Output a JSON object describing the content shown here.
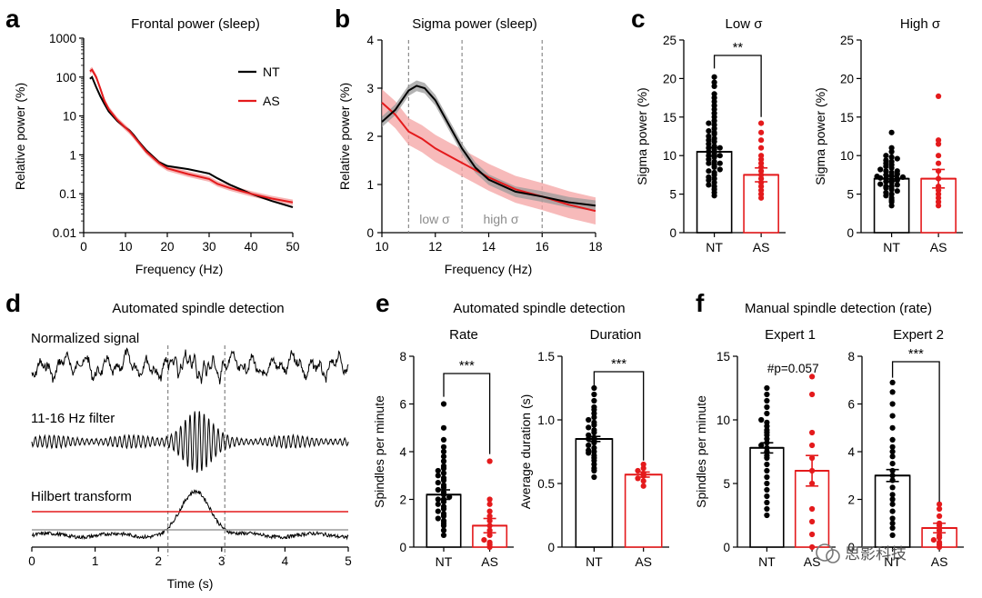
{
  "panel_labels": {
    "a": "a",
    "b": "b",
    "c": "c",
    "d": "d",
    "e": "e",
    "f": "f"
  },
  "watermark": {
    "text": "思影科技"
  },
  "colors": {
    "nt": "#000000",
    "as": "#e41a1c",
    "as_band": "#f4a3a3",
    "nt_band": "#9a9a9a",
    "dash": "#8c8c8c",
    "threshold_red": "#e41a1c",
    "threshold_gray": "#9a9a9a"
  },
  "chart_data": [
    {
      "id": "a",
      "type": "line",
      "title": "Frontal power (sleep)",
      "xlabel": "Frequency (Hz)",
      "ylabel": "Relative power (%)",
      "yscale": "log",
      "xlim": [
        0,
        50
      ],
      "ylim": [
        0.01,
        1000
      ],
      "xticks": [
        "0",
        "10",
        "20",
        "30",
        "40",
        "50"
      ],
      "yticks": [
        "0.01",
        "0.1",
        "1",
        "10",
        "100",
        "1000"
      ],
      "legend": {
        "position": "top-right",
        "entries": [
          "NT",
          "AS"
        ]
      },
      "series": [
        {
          "name": "NT",
          "x": [
            1.5,
            2,
            3,
            4,
            5,
            6,
            8,
            10,
            11,
            12,
            13,
            15,
            18,
            20,
            25,
            30,
            32,
            35,
            40,
            45,
            50
          ],
          "y": [
            90,
            100,
            55,
            32,
            20,
            13,
            7.5,
            5,
            4.2,
            3.2,
            2.3,
            1.3,
            0.65,
            0.52,
            0.43,
            0.33,
            0.25,
            0.17,
            0.1,
            0.065,
            0.045
          ]
        },
        {
          "name": "AS",
          "x": [
            1.5,
            2,
            3,
            4,
            5,
            6,
            8,
            10,
            11,
            12,
            13,
            15,
            18,
            20,
            25,
            30,
            32,
            35,
            40,
            45,
            50
          ],
          "y": [
            140,
            155,
            100,
            50,
            24,
            15,
            8,
            5,
            4,
            3,
            2.2,
            1.2,
            0.62,
            0.45,
            0.32,
            0.24,
            0.18,
            0.14,
            0.1,
            0.075,
            0.06
          ]
        }
      ]
    },
    {
      "id": "b",
      "type": "line",
      "title": "Sigma power (sleep)",
      "xlabel": "Frequency (Hz)",
      "ylabel": "Relative power (%)",
      "xlim": [
        10,
        18
      ],
      "ylim": [
        0,
        4
      ],
      "xticks": [
        "10",
        "12",
        "14",
        "16",
        "18"
      ],
      "yticks": [
        "0",
        "1",
        "2",
        "3",
        "4"
      ],
      "dashed_x": [
        11,
        13,
        16
      ],
      "bands": [
        "low σ",
        "high σ"
      ],
      "series": [
        {
          "name": "NT",
          "x": [
            10,
            10.5,
            11,
            11.3,
            11.6,
            12,
            12.5,
            13,
            13.5,
            14,
            15,
            16,
            17,
            18
          ],
          "y": [
            2.3,
            2.55,
            2.95,
            3.05,
            3.0,
            2.75,
            2.25,
            1.75,
            1.35,
            1.1,
            0.85,
            0.75,
            0.63,
            0.56
          ]
        },
        {
          "name": "AS",
          "x": [
            10,
            10.5,
            11,
            11.5,
            12,
            12.5,
            13,
            13.5,
            14,
            15,
            16,
            17,
            18
          ],
          "y": [
            2.7,
            2.45,
            2.1,
            1.95,
            1.75,
            1.6,
            1.45,
            1.3,
            1.15,
            0.9,
            0.75,
            0.58,
            0.45
          ]
        }
      ]
    },
    {
      "id": "c1",
      "type": "bar",
      "title": "Low σ",
      "ylabel": "Sigma power (%)",
      "categories": [
        "NT",
        "AS"
      ],
      "values": [
        10.5,
        7.5
      ],
      "sem": [
        0.55,
        0.9
      ],
      "ylim": [
        0,
        25
      ],
      "yticks": [
        "0",
        "5",
        "10",
        "15",
        "20",
        "25"
      ],
      "significance": "**",
      "points": [
        [
          4.8,
          5.2,
          5.6,
          6,
          6.2,
          6.5,
          6.8,
          7,
          7.2,
          7.5,
          7.8,
          8,
          8.2,
          8.5,
          8.8,
          9,
          9,
          9.2,
          9.5,
          9.8,
          10,
          10,
          10.2,
          10.5,
          10.8,
          11,
          11,
          11.2,
          11.5,
          11.8,
          12,
          12.2,
          12.5,
          12.8,
          13,
          13.2,
          13.5,
          14,
          14.2,
          14.5,
          15,
          15.5,
          16,
          16.5,
          17,
          17.5,
          18,
          19,
          19.5,
          20.2
        ],
        [
          4.5,
          5,
          5.5,
          6,
          6.5,
          7,
          7.5,
          8,
          8.5,
          9,
          9.5,
          10,
          11,
          12,
          13,
          14.2
        ]
      ]
    },
    {
      "id": "c2",
      "type": "bar",
      "title": "High σ",
      "ylabel": "Sigma power (%)",
      "categories": [
        "NT",
        "AS"
      ],
      "values": [
        7.0,
        7.0
      ],
      "sem": [
        0.3,
        1.2
      ],
      "ylim": [
        0,
        25
      ],
      "yticks": [
        "0",
        "5",
        "10",
        "15",
        "20",
        "25"
      ],
      "points": [
        [
          3.5,
          4,
          4.2,
          4.5,
          4.8,
          5,
          5.2,
          5.4,
          5.6,
          5.8,
          6,
          6,
          6.2,
          6.3,
          6.5,
          6.6,
          6.8,
          6.9,
          7,
          7,
          7.1,
          7.2,
          7.3,
          7.4,
          7.5,
          7.6,
          7.8,
          8,
          8,
          8.2,
          8.4,
          8.6,
          8.8,
          9,
          9.2,
          9.4,
          9.6,
          9.8,
          10,
          10.5,
          11,
          13
        ],
        [
          3.5,
          4,
          4.5,
          5,
          5.5,
          6,
          7,
          8,
          9,
          10,
          11.5,
          12,
          17.7
        ]
      ]
    },
    {
      "id": "d",
      "type": "line",
      "title": "Automated spindle detection",
      "xlabel": "Time (s)",
      "xlim": [
        0,
        5
      ],
      "xticks": [
        "0",
        "1",
        "2",
        "3",
        "4",
        "5"
      ],
      "trace_labels": [
        "Normalized signal",
        "11-16 Hz filter",
        "Hilbert transform"
      ],
      "detection_window_s": [
        2.15,
        3.05
      ]
    },
    {
      "id": "e1",
      "type": "bar",
      "title": "Automated spindle detection",
      "subtitle": "Rate",
      "ylabel": "Spindles per minute",
      "categories": [
        "NT",
        "AS"
      ],
      "values": [
        2.2,
        0.9
      ],
      "sem": [
        0.2,
        0.3
      ],
      "ylim": [
        0,
        8
      ],
      "yticks": [
        "0",
        "2",
        "4",
        "6",
        "8"
      ],
      "significance": "***",
      "points": [
        [
          0.5,
          0.7,
          0.9,
          1.0,
          1.1,
          1.2,
          1.3,
          1.4,
          1.5,
          1.6,
          1.7,
          1.8,
          1.9,
          2.0,
          2.0,
          2.1,
          2.2,
          2.3,
          2.4,
          2.5,
          2.6,
          2.7,
          2.8,
          2.9,
          3.0,
          3.1,
          3.2,
          3.3,
          3.4,
          3.6,
          3.8,
          4.0,
          4.2,
          4.5,
          5.0,
          6.0
        ],
        [
          0,
          0.1,
          0.2,
          0.3,
          0.5,
          0.7,
          0.9,
          1.1,
          1.3,
          1.5,
          1.8,
          2.0,
          3.6
        ]
      ]
    },
    {
      "id": "e2",
      "type": "bar",
      "subtitle": "Duration",
      "ylabel": "Average duration (s)",
      "categories": [
        "NT",
        "AS"
      ],
      "values": [
        0.85,
        0.57
      ],
      "sem": [
        0.02,
        0.02
      ],
      "ylim": [
        0,
        1.5
      ],
      "yticks": [
        "0",
        "0.5",
        "1.0",
        "1.5"
      ],
      "significance": "***",
      "points": [
        [
          0.55,
          0.6,
          0.62,
          0.65,
          0.68,
          0.7,
          0.72,
          0.74,
          0.75,
          0.76,
          0.78,
          0.8,
          0.82,
          0.84,
          0.85,
          0.86,
          0.88,
          0.9,
          0.92,
          0.94,
          0.96,
          0.98,
          1.0,
          1.02,
          1.05,
          1.08,
          1.1,
          1.15,
          1.2,
          1.25
        ],
        [
          0.48,
          0.52,
          0.54,
          0.56,
          0.58,
          0.6,
          0.62,
          0.65
        ]
      ]
    },
    {
      "id": "f1",
      "type": "bar",
      "title": "Manual spindle detection (rate)",
      "subtitle": "Expert 1",
      "ylabel": "Spindles per minute",
      "categories": [
        "NT",
        "AS"
      ],
      "values": [
        7.8,
        6.0
      ],
      "sem": [
        0.4,
        1.2
      ],
      "ylim": [
        0,
        15
      ],
      "yticks": [
        "0",
        "5",
        "10",
        "15"
      ],
      "annotation": "#p=0.057",
      "points": [
        [
          2.5,
          3,
          3.5,
          4,
          4.5,
          5,
          5.5,
          6,
          6.5,
          7,
          7.2,
          7.5,
          7.8,
          8,
          8.2,
          8.5,
          8.8,
          9,
          9.2,
          9.5,
          9.8,
          10,
          10.5,
          11,
          11.5,
          12,
          12.5
        ],
        [
          0,
          1,
          2,
          3,
          5,
          6,
          7,
          8,
          9,
          12,
          13.4
        ]
      ]
    },
    {
      "id": "f2",
      "type": "bar",
      "subtitle": "Expert 2",
      "ylabel": "Spindles per minute",
      "categories": [
        "NT",
        "AS"
      ],
      "values": [
        3.0,
        0.8
      ],
      "sem": [
        0.25,
        0.2
      ],
      "ylim": [
        0,
        8
      ],
      "yticks": [
        "0",
        "2",
        "4",
        "6",
        "8"
      ],
      "significance": "***",
      "points": [
        [
          0.5,
          0.8,
          1.0,
          1.2,
          1.5,
          1.8,
          2.0,
          2.2,
          2.5,
          2.8,
          3.0,
          3.2,
          3.5,
          3.8,
          4.0,
          4.2,
          4.5,
          5.0,
          5.5,
          6.0,
          6.5,
          6.9
        ],
        [
          0,
          0.1,
          0.2,
          0.3,
          0.4,
          0.5,
          0.7,
          0.9,
          1.0,
          1.3,
          1.6,
          1.8
        ]
      ]
    }
  ]
}
